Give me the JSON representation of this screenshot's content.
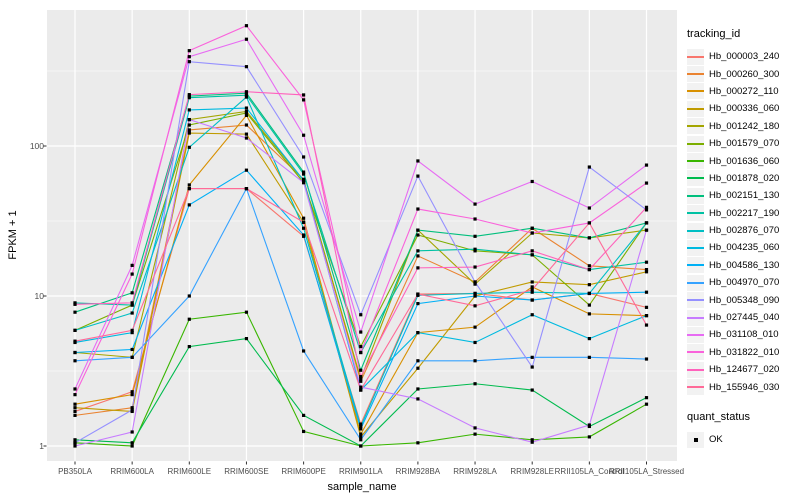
{
  "figure": {
    "xlabel": "sample_name",
    "ylabel": "FPKM + 1",
    "legend_title": "tracking_id",
    "legend2_title": "quant_status",
    "legend2_item": "OK",
    "y_tick_labels": [
      "1",
      "10",
      "100"
    ],
    "panel_bg": "#EBEBEB",
    "grid_color": "#FFFFFF",
    "point_color": "#000000",
    "axis_text_color": "#4D4D4D"
  },
  "chart_data": {
    "type": "line",
    "title": "",
    "xlabel": "sample_name",
    "ylabel": "FPKM + 1",
    "yscale": "log10",
    "ylim": [
      1,
      700
    ],
    "y_ticks": [
      1,
      10,
      100
    ],
    "y_minor_ticks": [
      3.162,
      31.62,
      316.2
    ],
    "grid": true,
    "legend_position": "right",
    "legend_title": "tracking_id",
    "marker": "black-square",
    "quant_status_legend": {
      "title": "quant_status",
      "items": [
        "OK"
      ]
    },
    "x_categories": [
      "PB350LA",
      "RRIM600LA",
      "RRIM600LE",
      "RRIM600SE",
      "RRIM600PE",
      "RRIM901LA",
      "RRIM928BA",
      "RRIM928LA",
      "RRIM928LE",
      "RRII105LA_Control",
      "RRII105LA_Stressed"
    ],
    "series": [
      {
        "name": "Hb_000003_240",
        "color": "#F8766D",
        "values": [
          1.7,
          2.3,
          52,
          52,
          25,
          1.4,
          10.3,
          10.4,
          9.4,
          10.4,
          8.4
        ]
      },
      {
        "name": "Hb_000260_300",
        "color": "#EA8331",
        "values": [
          1.6,
          1.8,
          128,
          138,
          60,
          2.7,
          18.5,
          12.4,
          28.3,
          15.9,
          15
        ]
      },
      {
        "name": "Hb_000272_110",
        "color": "#D89000",
        "values": [
          1.9,
          2.2,
          55,
          160,
          33,
          1.2,
          5.7,
          6.2,
          11.5,
          7.6,
          7.4
        ]
      },
      {
        "name": "Hb_000336_060",
        "color": "#C09B00",
        "values": [
          1.8,
          1.7,
          122,
          120,
          31,
          1.15,
          3.3,
          10,
          12.4,
          11.9,
          14.5
        ]
      },
      {
        "name": "Hb_001242_180",
        "color": "#A3A500",
        "values": [
          4.2,
          3.9,
          150,
          170,
          59,
          2.8,
          27.5,
          12,
          26.3,
          24.4,
          27.5
        ]
      },
      {
        "name": "Hb_001579_070",
        "color": "#7CAE00",
        "values": [
          5.9,
          8.7,
          138,
          166,
          57,
          4.6,
          25.5,
          20,
          18.8,
          8.7,
          30.7
        ]
      },
      {
        "name": "Hb_001636_060",
        "color": "#39B600",
        "values": [
          1.05,
          1.0,
          7,
          7.8,
          1.25,
          1.0,
          1.05,
          1.2,
          1.1,
          1.15,
          1.9
        ]
      },
      {
        "name": "Hb_001878_020",
        "color": "#00BB4E",
        "values": [
          1.1,
          1.05,
          4.6,
          5.2,
          1.6,
          1.0,
          2.4,
          2.6,
          2.36,
          1.35,
          2.1
        ]
      },
      {
        "name": "Hb_002151_130",
        "color": "#00BF7D",
        "values": [
          7.8,
          10.5,
          215,
          225,
          67,
          3.2,
          27.5,
          25,
          28.3,
          24.4,
          30.7
        ]
      },
      {
        "name": "Hb_002217_190",
        "color": "#00C1A3",
        "values": [
          9.0,
          8.7,
          210,
          218,
          65,
          4.2,
          20,
          20.5,
          18.8,
          15,
          16.8
        ]
      },
      {
        "name": "Hb_002876_070",
        "color": "#00BFC4",
        "values": [
          5.9,
          7.7,
          98,
          212,
          28.3,
          1.35,
          10.1,
          10.4,
          10.6,
          10.4,
          30.7
        ]
      },
      {
        "name": "Hb_004235_060",
        "color": "#00BAE0",
        "values": [
          4.9,
          5.7,
          174,
          179,
          59,
          2.36,
          5.7,
          4.9,
          7.5,
          5.2,
          7.4
        ]
      },
      {
        "name": "Hb_004586_130",
        "color": "#00B0F6",
        "values": [
          4.2,
          4.4,
          40.5,
          69,
          25.5,
          1.3,
          8.9,
          10,
          9.4,
          10.4,
          10.6
        ]
      },
      {
        "name": "Hb_004970_070",
        "color": "#35A2FF",
        "values": [
          3.7,
          3.9,
          10,
          52,
          4.3,
          1.1,
          3.7,
          3.7,
          3.9,
          3.9,
          3.8
        ]
      },
      {
        "name": "Hb_005348_090",
        "color": "#9590FF",
        "values": [
          1.05,
          1.74,
          365,
          338,
          84.5,
          7.5,
          63,
          12.4,
          3.36,
          72.4,
          37.5
        ]
      },
      {
        "name": "Hb_027445_040",
        "color": "#C77CFF",
        "values": [
          1.0,
          1.24,
          150,
          113,
          57,
          2.47,
          2.06,
          1.32,
          1.06,
          1.38,
          27.5
        ]
      },
      {
        "name": "Hb_031108_010",
        "color": "#E76BF3",
        "values": [
          2.4,
          16,
          394,
          515,
          118,
          5.75,
          79.5,
          41,
          58,
          38.6,
          74.6
        ]
      },
      {
        "name": "Hb_031822_010",
        "color": "#FA62DB",
        "values": [
          2.2,
          14,
          432,
          634,
          203,
          4.2,
          38,
          32.6,
          26.3,
          30.7,
          56.6
        ]
      },
      {
        "name": "Hb_124677_020",
        "color": "#FF62BC",
        "values": [
          8.8,
          9.0,
          220,
          230,
          219,
          2.9,
          15.4,
          15.6,
          20,
          15,
          39
        ]
      },
      {
        "name": "Hb_155946_030",
        "color": "#FF6A98",
        "values": [
          5.0,
          5.9,
          52,
          52,
          31,
          2.36,
          10.3,
          8.6,
          11,
          30.7,
          6.4
        ]
      }
    ]
  }
}
